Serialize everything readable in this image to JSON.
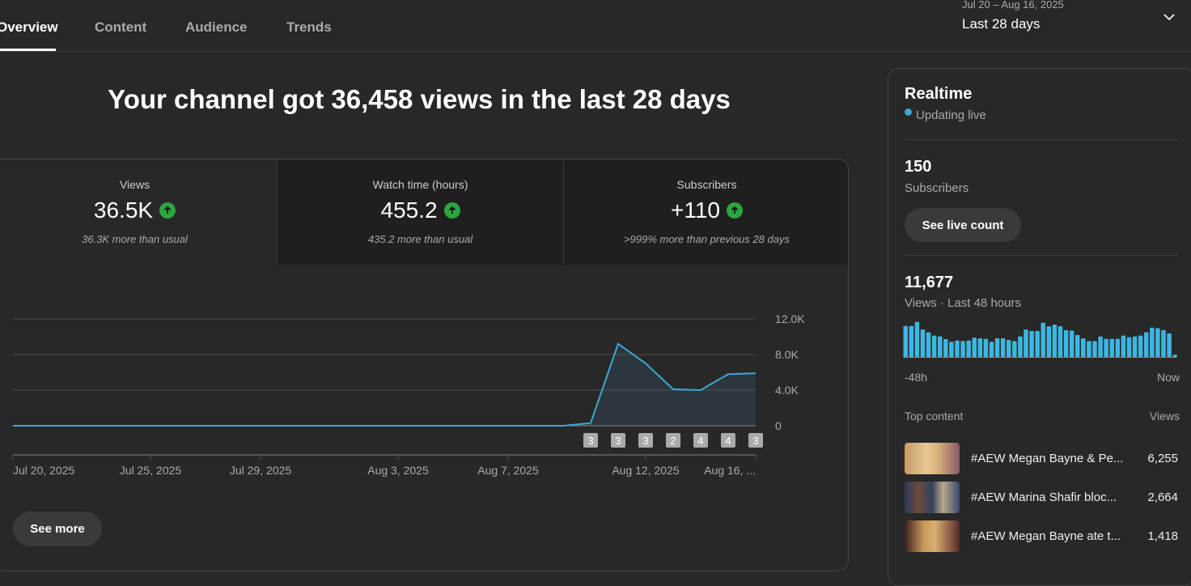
{
  "tabs": [
    {
      "label": "Overview"
    },
    {
      "label": "Content"
    },
    {
      "label": "Audience"
    },
    {
      "label": "Trends"
    }
  ],
  "date_picker": {
    "range": "Jul 20 – Aug 16, 2025",
    "period": "Last 28 days"
  },
  "headline": "Your channel got 36,458 views in the last 28 days",
  "metrics": [
    {
      "label": "Views",
      "value": "36.5K",
      "trend": "up",
      "sub": "36.3K more than usual"
    },
    {
      "label": "Watch time (hours)",
      "value": "455.2",
      "trend": "up",
      "sub": "435.2 more than usual"
    },
    {
      "label": "Subscribers",
      "value": "+110",
      "trend": "up",
      "sub": ">999% more than previous 28 days"
    }
  ],
  "see_more": "See more",
  "chart_data": {
    "type": "area",
    "series_name": "Views",
    "x": [
      "Jul 20",
      "Jul 21",
      "Jul 22",
      "Jul 23",
      "Jul 24",
      "Jul 25",
      "Jul 26",
      "Jul 27",
      "Jul 28",
      "Jul 29",
      "Jul 30",
      "Jul 31",
      "Aug 1",
      "Aug 2",
      "Aug 3",
      "Aug 4",
      "Aug 5",
      "Aug 6",
      "Aug 7",
      "Aug 8",
      "Aug 9",
      "Aug 10",
      "Aug 11",
      "Aug 12",
      "Aug 13",
      "Aug 14",
      "Aug 15",
      "Aug 16"
    ],
    "values": [
      0,
      0,
      0,
      0,
      0,
      0,
      0,
      0,
      0,
      0,
      0,
      0,
      0,
      0,
      0,
      0,
      0,
      0,
      0,
      0,
      0,
      300,
      9200,
      7000,
      4100,
      4000,
      5800,
      5900
    ],
    "ylim": [
      0,
      12000
    ],
    "yticks": [
      "0",
      "4.0K",
      "8.0K",
      "12.0K"
    ],
    "xtick_labels": [
      {
        "label": "Jul 20, 2025",
        "index": 0
      },
      {
        "label": "Jul 25, 2025",
        "index": 5
      },
      {
        "label": "Jul 29, 2025",
        "index": 9
      },
      {
        "label": "Aug 3, 2025",
        "index": 14
      },
      {
        "label": "Aug 7, 2025",
        "index": 18
      },
      {
        "label": "Aug 12, 2025",
        "index": 23
      },
      {
        "label": "Aug 16, ...",
        "index": 27
      }
    ],
    "markers": [
      {
        "index": 21,
        "label": "3"
      },
      {
        "index": 22,
        "label": "3"
      },
      {
        "index": 23,
        "label": "3"
      },
      {
        "index": 24,
        "label": "2"
      },
      {
        "index": 25,
        "label": "4"
      },
      {
        "index": 26,
        "label": "4"
      },
      {
        "index": 27,
        "label": "3"
      }
    ],
    "color": "#3ea6d3"
  },
  "realtime": {
    "title": "Realtime",
    "status": "Updating live",
    "subscribers": "150",
    "subscribers_label": "Subscribers",
    "live_button": "See live count",
    "views": "11,677",
    "views_label": "Views · Last 48 hours",
    "hourly_bars": [
      113,
      113,
      128,
      100,
      90,
      78,
      75,
      65,
      55,
      60,
      58,
      60,
      70,
      68,
      66,
      55,
      68,
      68,
      62,
      58,
      75,
      100,
      95,
      95,
      125,
      112,
      118,
      112,
      98,
      96,
      80,
      68,
      58,
      58,
      75,
      66,
      66,
      66,
      78,
      72,
      75,
      78,
      90,
      107,
      105,
      98,
      86,
      8
    ],
    "axis_start": "-48h",
    "axis_end": "Now",
    "top_content_label": "Top content",
    "views_col": "Views",
    "top_content": [
      {
        "title": "#AEW Megan Bayne & Pe...",
        "views": "6,255"
      },
      {
        "title": "#AEW Marina Shafir bloc...",
        "views": "2,664"
      },
      {
        "title": "#AEW Megan Bayne ate t...",
        "views": "1,418"
      }
    ]
  }
}
